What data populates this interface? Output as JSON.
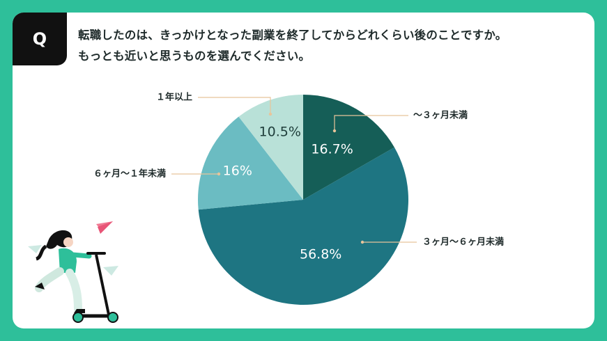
{
  "badge": {
    "letter": "Q"
  },
  "question": {
    "line1": "転職したのは、きっかけとなった副業を終了してからどれくらい後のことですか。",
    "line2": "もっとも近いと思うものを選んでください。"
  },
  "chart_data": {
    "type": "pie",
    "slices": [
      {
        "label": "～３ヶ月未満",
        "value": 16.7,
        "display": "16.7%",
        "color": "#155e57"
      },
      {
        "label": "３ヶ月～６ヶ月未満",
        "value": 56.8,
        "display": "56.8%",
        "color": "#1e7582"
      },
      {
        "label": "６ヶ月～１年未満",
        "value": 16.0,
        "display": "16%",
        "color": "#6bbcc2"
      },
      {
        "label": "１年以上",
        "value": 10.5,
        "display": "10.5%",
        "color": "#b9e1d8"
      }
    ],
    "start_angle": "12 o'clock",
    "direction": "clockwise",
    "legend": "none"
  }
}
